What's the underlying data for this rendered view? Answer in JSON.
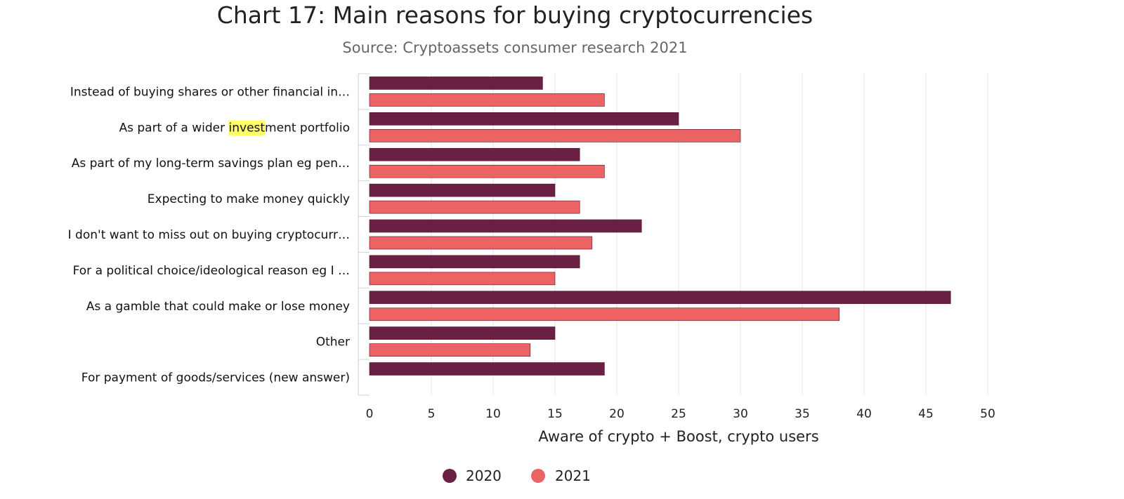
{
  "chart_data": {
    "type": "bar",
    "orientation": "horizontal",
    "title": "Chart 17: Main reasons for buying cryptocurrencies",
    "subtitle": "Source: Cryptoassets consumer research 2021",
    "xlabel": "Aware of crypto + Boost, crypto users",
    "xlim": [
      0,
      50
    ],
    "xticks": [
      0,
      5,
      10,
      15,
      20,
      25,
      30,
      35,
      40,
      45,
      50
    ],
    "grid": true,
    "legend_position": "bottom-center",
    "categories": [
      "Instead of buying shares or other financial in…",
      "As part of a wider investment portfolio",
      "As part of my long-term savings plan eg pen…",
      "Expecting to make money quickly",
      "I don't want to miss out on buying cryptocurr…",
      "For a political choice/ideological reason eg I …",
      "As a gamble that could make or lose money",
      "Other",
      "For payment of goods/services (new answer)"
    ],
    "highlight": {
      "category_index": 1,
      "text": "invest",
      "color": "#ffff66"
    },
    "series": [
      {
        "name": "2020",
        "color": "#6a2043",
        "values": [
          14,
          25,
          17,
          15,
          22,
          17,
          47,
          15,
          19
        ]
      },
      {
        "name": "2021",
        "color": "#ec6363",
        "values": [
          19,
          30,
          19,
          17,
          18,
          15,
          38,
          13,
          null
        ]
      }
    ]
  }
}
